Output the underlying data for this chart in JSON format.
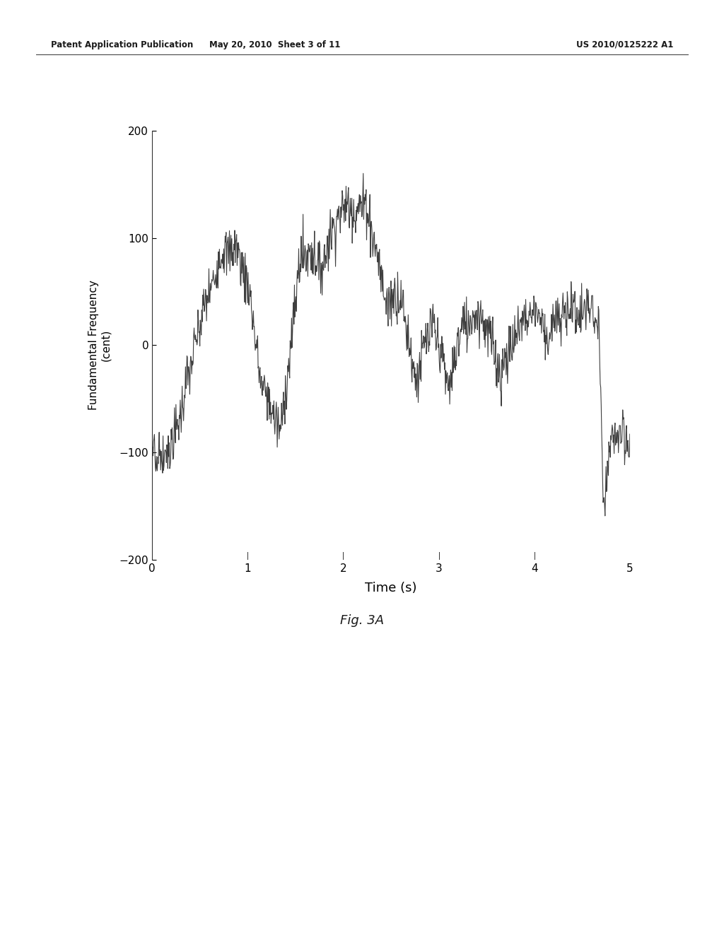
{
  "title": "",
  "xlabel": "Time (s)",
  "ylabel": "Fundamental Frequency\n(cent)",
  "xlim": [
    0,
    5
  ],
  "ylim": [
    -200,
    200
  ],
  "xticks": [
    0,
    1,
    2,
    3,
    4,
    5
  ],
  "yticks": [
    -200,
    -100,
    0,
    100,
    200
  ],
  "line_color": "#2a2a2a",
  "background_color": "#ffffff",
  "fig_caption": "Fig. 3A",
  "header_left": "Patent Application Publication",
  "header_mid": "May 20, 2010  Sheet 3 of 11",
  "header_right": "US 2010/0125222 A1",
  "line_width": 0.8,
  "seed": 7
}
